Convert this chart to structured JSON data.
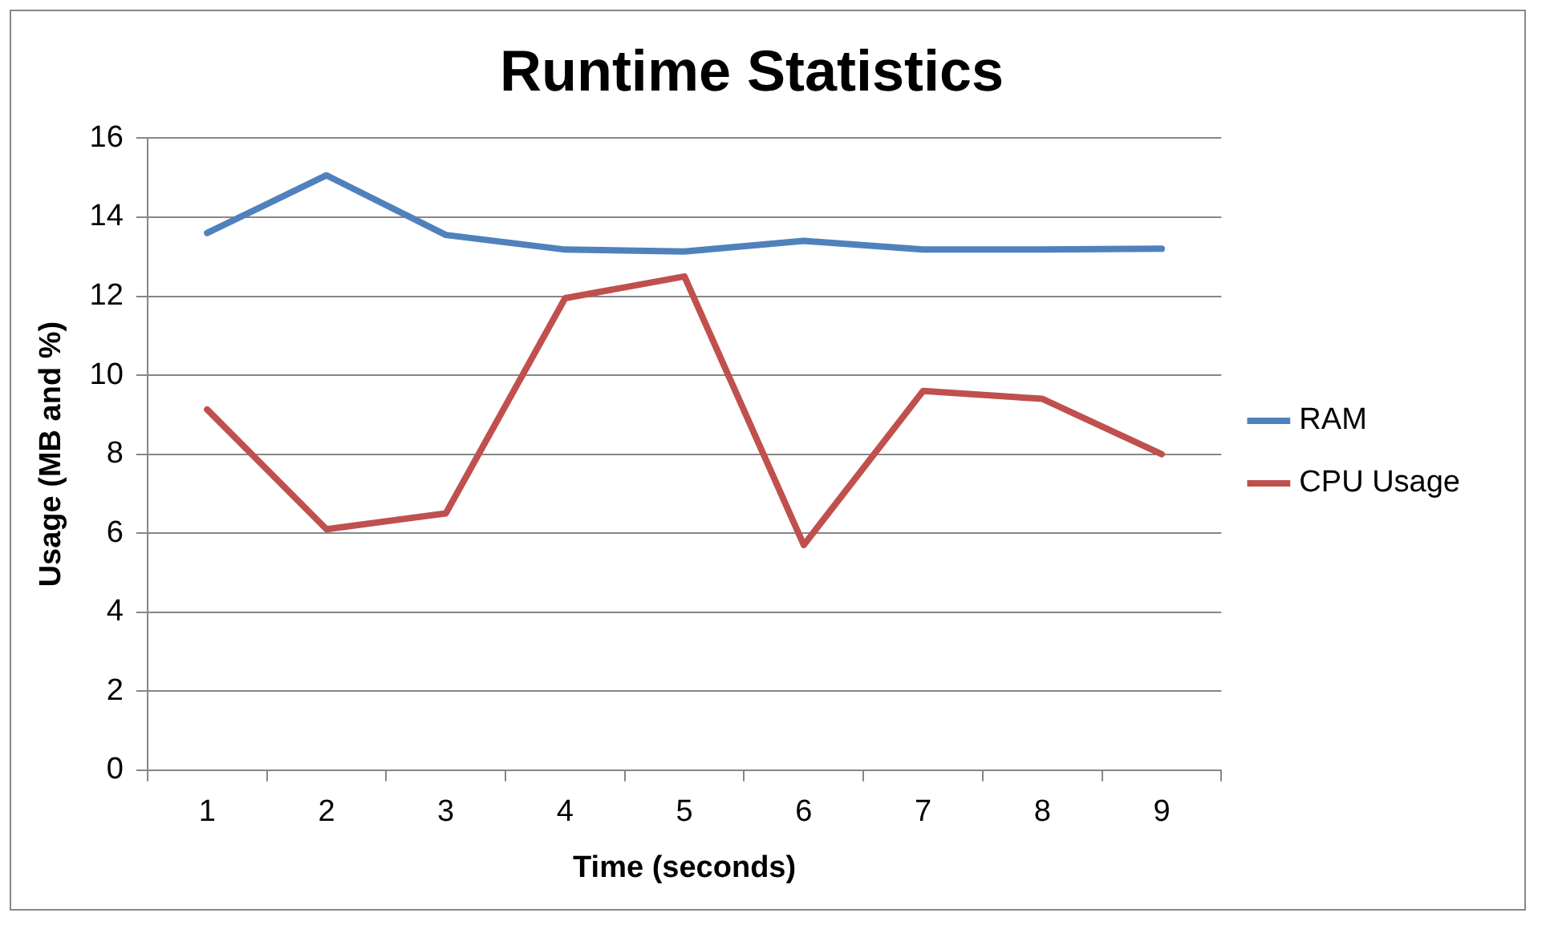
{
  "chart_data": {
    "type": "line",
    "title": "Runtime Statistics",
    "xlabel": "Time (seconds)",
    "ylabel": "Usage (MB and %)",
    "categories": [
      "1",
      "2",
      "3",
      "4",
      "5",
      "6",
      "7",
      "8",
      "9"
    ],
    "series": [
      {
        "name": "RAM",
        "color": "#4f81bd",
        "values": [
          13.6,
          15.06,
          13.55,
          13.18,
          13.13,
          13.4,
          13.18,
          13.18,
          13.2
        ]
      },
      {
        "name": "CPU Usage",
        "color": "#c0504d",
        "values": [
          9.13,
          6.1,
          6.5,
          11.95,
          12.5,
          5.7,
          9.6,
          9.4,
          8.0
        ]
      }
    ],
    "ylim": [
      0,
      16
    ],
    "yticks": [
      0,
      2,
      4,
      6,
      8,
      10,
      12,
      14,
      16
    ],
    "grid": "y",
    "legend": "right",
    "marker": "none",
    "line_style": "solid"
  }
}
